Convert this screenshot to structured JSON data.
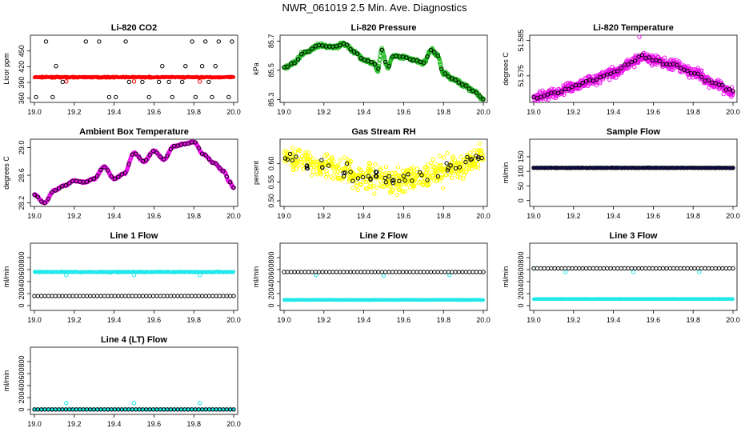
{
  "title": "NWR_061019  2.5 Min. Ave. Diagnostics",
  "chart_data": [
    {
      "type": "scatter",
      "title": "Li-820 CO2",
      "ylabel": "Licor ppm",
      "xlim": [
        18.98,
        20.02
      ],
      "ylim": [
        352,
        480
      ],
      "x_ticks": [
        "19.0",
        "19.2",
        "19.4",
        "19.6",
        "19.8",
        "20.0"
      ],
      "x_tick_values": [
        19.0,
        19.2,
        19.4,
        19.6,
        19.8,
        20.0
      ],
      "y_ticks": [
        "360",
        "390",
        "420",
        "450"
      ],
      "y_tick_values": [
        360,
        390,
        420,
        450
      ],
      "series": [
        {
          "name": "raw",
          "color": "#ff0000",
          "style": "dense",
          "base": 400,
          "noise": 1.2,
          "outliers": [
            [
              19.16,
              392
            ],
            [
              19.5,
              392
            ],
            [
              19.83,
              392
            ]
          ]
        },
        {
          "name": "average",
          "color": "#000000",
          "style": "levels",
          "levels": [
            362,
            391,
            421,
            468
          ],
          "pattern": [
            0,
            1,
            2,
            3,
            1,
            0,
            2,
            3,
            1,
            2,
            0,
            3
          ]
        }
      ]
    },
    {
      "type": "scatter",
      "title": "Li-820 Pressure",
      "ylabel": "kPa",
      "xlim": [
        18.98,
        20.02
      ],
      "ylim": [
        85.28,
        85.74
      ],
      "x_ticks": [
        "19.0",
        "19.2",
        "19.4",
        "19.6",
        "19.8",
        "20.0"
      ],
      "x_tick_values": [
        19.0,
        19.2,
        19.4,
        19.6,
        19.8,
        20.0
      ],
      "y_ticks": [
        "85.3",
        "85.5",
        "85.7"
      ],
      "y_tick_values": [
        85.3,
        85.5,
        85.7
      ],
      "series": [
        {
          "name": "raw",
          "color": "#22bb22",
          "style": "curve",
          "noise": 0.012,
          "knots": [
            [
              19.0,
              85.52
            ],
            [
              19.05,
              85.55
            ],
            [
              19.1,
              85.62
            ],
            [
              19.18,
              85.67
            ],
            [
              19.25,
              85.66
            ],
            [
              19.3,
              85.68
            ],
            [
              19.36,
              85.62
            ],
            [
              19.4,
              85.57
            ],
            [
              19.45,
              85.55
            ],
            [
              19.47,
              85.5
            ],
            [
              19.49,
              85.64
            ],
            [
              19.52,
              85.52
            ],
            [
              19.55,
              85.6
            ],
            [
              19.6,
              85.59
            ],
            [
              19.65,
              85.57
            ],
            [
              19.7,
              85.55
            ],
            [
              19.74,
              85.64
            ],
            [
              19.77,
              85.6
            ],
            [
              19.8,
              85.48
            ],
            [
              19.85,
              85.44
            ],
            [
              19.9,
              85.4
            ],
            [
              19.95,
              85.36
            ],
            [
              20.0,
              85.3
            ]
          ]
        },
        {
          "name": "average",
          "color": "#000000",
          "style": "onCurve",
          "n": 58
        }
      ]
    },
    {
      "type": "scatter",
      "title": "Li-820 Temperature",
      "ylabel": "degrees C",
      "xlim": [
        18.98,
        20.02
      ],
      "ylim": [
        51.5675,
        51.5865
      ],
      "x_ticks": [
        "19.0",
        "19.2",
        "19.4",
        "19.6",
        "19.8",
        "20.0"
      ],
      "x_tick_values": [
        19.0,
        19.2,
        19.4,
        19.6,
        19.8,
        20.0
      ],
      "y_ticks": [
        "51.575",
        "51.585"
      ],
      "y_tick_values": [
        51.575,
        51.585
      ],
      "series": [
        {
          "name": "raw",
          "color": "#ee11ee",
          "style": "curve",
          "noise": 0.0014,
          "knots": [
            [
              19.0,
              51.569
            ],
            [
              19.1,
              51.57
            ],
            [
              19.2,
              51.572
            ],
            [
              19.3,
              51.574
            ],
            [
              19.4,
              51.576
            ],
            [
              19.5,
              51.579
            ],
            [
              19.55,
              51.5805
            ],
            [
              19.6,
              51.5795
            ],
            [
              19.7,
              51.578
            ],
            [
              19.8,
              51.576
            ],
            [
              19.9,
              51.573
            ],
            [
              20.0,
              51.5705
            ]
          ],
          "outliers": [
            [
              19.53,
              51.586
            ]
          ]
        },
        {
          "name": "average",
          "color": "#000000",
          "style": "onCurve",
          "n": 58
        }
      ]
    },
    {
      "type": "scatter",
      "title": "Ambient Box Temperature",
      "ylabel": "degrees C",
      "xlim": [
        18.98,
        20.02
      ],
      "ylim": [
        28.15,
        29.12
      ],
      "x_ticks": [
        "19.0",
        "19.2",
        "19.4",
        "19.6",
        "19.8",
        "20.0"
      ],
      "x_tick_values": [
        19.0,
        19.2,
        19.4,
        19.6,
        19.8,
        20.0
      ],
      "y_ticks": [
        "28.2",
        "28.6",
        "29.0"
      ],
      "y_tick_values": [
        28.2,
        28.6,
        29.0
      ],
      "series": [
        {
          "name": "raw",
          "color": "#ee11ee",
          "style": "curve",
          "noise": 0.01,
          "knots": [
            [
              19.0,
              28.32
            ],
            [
              19.05,
              28.2
            ],
            [
              19.1,
              28.38
            ],
            [
              19.15,
              28.45
            ],
            [
              19.2,
              28.52
            ],
            [
              19.25,
              28.5
            ],
            [
              19.3,
              28.55
            ],
            [
              19.35,
              28.72
            ],
            [
              19.4,
              28.55
            ],
            [
              19.45,
              28.62
            ],
            [
              19.5,
              28.92
            ],
            [
              19.55,
              28.8
            ],
            [
              19.6,
              28.95
            ],
            [
              19.65,
              28.83
            ],
            [
              19.7,
              29.02
            ],
            [
              19.75,
              29.05
            ],
            [
              19.8,
              29.08
            ],
            [
              19.85,
              28.9
            ],
            [
              19.9,
              28.78
            ],
            [
              19.95,
              28.66
            ],
            [
              19.98,
              28.5
            ],
            [
              20.0,
              28.42
            ]
          ]
        },
        {
          "name": "average",
          "color": "#000000",
          "style": "onCurve",
          "n": 58
        }
      ]
    },
    {
      "type": "scatter",
      "title": "Gas Stream RH",
      "ylabel": "percent",
      "xlim": [
        18.98,
        20.02
      ],
      "ylim": [
        0.485,
        0.665
      ],
      "x_ticks": [
        "19.0",
        "19.2",
        "19.4",
        "19.6",
        "19.8",
        "20.0"
      ],
      "x_tick_values": [
        19.0,
        19.2,
        19.4,
        19.6,
        19.8,
        20.0
      ],
      "y_ticks": [
        "0.50",
        "0.55",
        "0.60"
      ],
      "y_tick_values": [
        0.5,
        0.55,
        0.6
      ],
      "series": [
        {
          "name": "raw",
          "color": "#ffff00",
          "style": "scatterNoise",
          "n": 520,
          "noise": 0.032,
          "knots": [
            [
              19.0,
              0.615
            ],
            [
              19.2,
              0.595
            ],
            [
              19.4,
              0.565
            ],
            [
              19.55,
              0.55
            ],
            [
              19.7,
              0.57
            ],
            [
              19.85,
              0.59
            ],
            [
              20.0,
              0.615
            ]
          ]
        },
        {
          "name": "average",
          "color": "#000000",
          "style": "scatterNoise",
          "n": 58,
          "noise": 0.02,
          "knots": [
            [
              19.0,
              0.615
            ],
            [
              19.2,
              0.595
            ],
            [
              19.4,
              0.565
            ],
            [
              19.55,
              0.55
            ],
            [
              19.7,
              0.57
            ],
            [
              19.85,
              0.59
            ],
            [
              20.0,
              0.615
            ]
          ]
        }
      ]
    },
    {
      "type": "scatter",
      "title": "Sample Flow",
      "ylabel": "ml/min",
      "xlim": [
        18.98,
        20.02
      ],
      "ylim": [
        -20,
        210
      ],
      "x_ticks": [
        "19.0",
        "19.2",
        "19.4",
        "19.6",
        "19.8",
        "20.0"
      ],
      "x_tick_values": [
        19.0,
        19.2,
        19.4,
        19.6,
        19.8,
        20.0
      ],
      "y_ticks": [
        "0",
        "50",
        "100",
        "150"
      ],
      "y_tick_values": [
        0,
        50,
        100,
        150
      ],
      "series": [
        {
          "name": "raw",
          "color": "#11115a",
          "style": "dense",
          "base": 112,
          "noise": 1.5
        },
        {
          "name": "average",
          "color": "#000000",
          "style": "flat",
          "base": 112,
          "n": 58
        }
      ]
    },
    {
      "type": "scatter",
      "title": "Line 1 Flow",
      "ylabel": "ml/min",
      "xlim": [
        18.98,
        20.02
      ],
      "ylim": [
        -80,
        1040
      ],
      "x_ticks": [
        "19.0",
        "19.2",
        "19.4",
        "19.6",
        "19.8",
        "20.0"
      ],
      "x_tick_values": [
        19.0,
        19.2,
        19.4,
        19.6,
        19.8,
        20.0
      ],
      "y_ticks": [
        "0",
        "200",
        "400",
        "600",
        "800"
      ],
      "y_tick_values": [
        0,
        200,
        400,
        600,
        800
      ],
      "series": [
        {
          "name": "raw",
          "color": "#22e8e8",
          "style": "dense",
          "base": 560,
          "noise": 10,
          "outliers": [
            [
              19.16,
              510
            ],
            [
              19.5,
              510
            ],
            [
              19.83,
              510
            ]
          ]
        },
        {
          "name": "average",
          "color": "#000000",
          "style": "flat",
          "base": 160,
          "n": 58
        }
      ]
    },
    {
      "type": "scatter",
      "title": "Line 2 Flow",
      "ylabel": "ml/min",
      "xlim": [
        18.98,
        20.02
      ],
      "ylim": [
        -80,
        1040
      ],
      "x_ticks": [
        "19.0",
        "19.2",
        "19.4",
        "19.6",
        "19.8",
        "20.0"
      ],
      "x_tick_values": [
        19.0,
        19.2,
        19.4,
        19.6,
        19.8,
        20.0
      ],
      "y_ticks": [
        "0",
        "200",
        "400",
        "600",
        "800"
      ],
      "y_tick_values": [
        0,
        200,
        400,
        600,
        800
      ],
      "series": [
        {
          "name": "raw",
          "color": "#22e8e8",
          "style": "dense",
          "base": 95,
          "noise": 4,
          "outliers": [
            [
              19.16,
              510
            ],
            [
              19.5,
              500
            ],
            [
              19.83,
              510
            ]
          ]
        },
        {
          "name": "raw-upper",
          "color": "#22e8e8",
          "style": "dense",
          "base": 560,
          "noise": 4,
          "count": 0
        },
        {
          "name": "average",
          "color": "#000000",
          "style": "flat",
          "base": 560,
          "n": 58
        }
      ]
    },
    {
      "type": "scatter",
      "title": "Line 3 Flow",
      "ylabel": "ml/min",
      "xlim": [
        18.98,
        20.02
      ],
      "ylim": [
        -80,
        1040
      ],
      "x_ticks": [
        "19.0",
        "19.2",
        "19.4",
        "19.6",
        "19.8",
        "20.0"
      ],
      "x_tick_values": [
        19.0,
        19.2,
        19.4,
        19.6,
        19.8,
        20.0
      ],
      "y_ticks": [
        "0",
        "200",
        "400",
        "600",
        "800"
      ],
      "y_tick_values": [
        0,
        200,
        400,
        600,
        800
      ],
      "series": [
        {
          "name": "raw",
          "color": "#22e8e8",
          "style": "dense",
          "base": 110,
          "noise": 4,
          "outliers": [
            [
              19.0,
              620
            ],
            [
              19.16,
              560
            ],
            [
              19.5,
              560
            ],
            [
              19.83,
              560
            ]
          ]
        },
        {
          "name": "average",
          "color": "#000000",
          "style": "flat",
          "base": 620,
          "n": 58
        }
      ]
    },
    {
      "type": "scatter",
      "title": "Line 4 (LT) Flow",
      "ylabel": "ml/min",
      "xlim": [
        18.98,
        20.02
      ],
      "ylim": [
        -80,
        1040
      ],
      "x_ticks": [
        "19.0",
        "19.2",
        "19.4",
        "19.6",
        "19.8",
        "20.0"
      ],
      "x_tick_values": [
        19.0,
        19.2,
        19.4,
        19.6,
        19.8,
        20.0
      ],
      "y_ticks": [
        "0",
        "200",
        "400",
        "600",
        "800"
      ],
      "y_tick_values": [
        0,
        200,
        400,
        600,
        800
      ],
      "series": [
        {
          "name": "raw",
          "color": "#22e8e8",
          "style": "dense",
          "base": 3,
          "noise": 2,
          "outliers": [
            [
              19.16,
              110
            ],
            [
              19.5,
              110
            ],
            [
              19.83,
              110
            ]
          ]
        },
        {
          "name": "average",
          "color": "#000000",
          "style": "flat",
          "base": 3,
          "n": 58
        }
      ]
    }
  ]
}
